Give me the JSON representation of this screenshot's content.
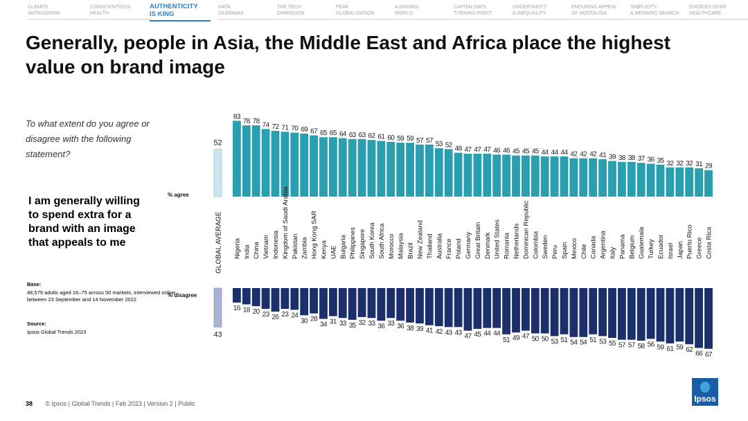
{
  "nav": [
    {
      "label": "CLIMATE\nANTAGONISM",
      "active": false
    },
    {
      "label": "CONSCIENTIOUS\nHEALTH",
      "active": false
    },
    {
      "label": "AUTHENTICITY\nIS KING",
      "active": true
    },
    {
      "label": "DATA\nDILEMMAS",
      "active": false
    },
    {
      "label": "THE TECH\nDIMENSION",
      "active": false
    },
    {
      "label": "PEAK\nGLOBALISATION",
      "active": false
    },
    {
      "label": "A DIVIDED\nWORLD",
      "active": false
    },
    {
      "label": "CAPITALISM'S\nTURNING POINT",
      "active": false
    },
    {
      "label": "UNCERTAINTY\n& INEQUALITY",
      "active": false
    },
    {
      "label": "ENDURING APPEAL\nOF NOSTALGIA",
      "active": false
    },
    {
      "label": "SIMPLICITY\n& MEANING SEARCH",
      "active": false
    },
    {
      "label": "CHOICES OVER\nHEALTHCARE",
      "active": false
    }
  ],
  "title": "Generally, people in Asia, the Middle East and Africa place the highest value on brand image",
  "question": "To what extent do you agree or disagree with the following statement?",
  "statement": "I am generally willing to spend extra for a brand with an image that appeals to me",
  "base": {
    "heading": "Base:",
    "text": "48,579 adults aged 16–75 across 50 markets, interviewed online between 23 September and 14 November 2022"
  },
  "source": {
    "heading": "Source:",
    "text": "Ipsos Global Trends 2023"
  },
  "footer": {
    "page": "38",
    "text": "© Ipsos | Global Trends | Feb 2023 | Version 2 | Public"
  },
  "logo": {
    "text": "Ipsos"
  },
  "chart_data": {
    "type": "bar",
    "global_average": {
      "label": "GLOBAL AVERAGE",
      "agree": 52,
      "disagree": 43
    },
    "series_labels": {
      "agree": "% agree",
      "disagree": "% disagree"
    },
    "colors": {
      "agree": "#2a9fb0",
      "disagree": "#1b2f6b",
      "avg_agree": "#c9e7ed",
      "avg_disagree": "#a9b3d6"
    },
    "categories": [
      "Nigeria",
      "India",
      "China",
      "Vietnam",
      "Indonesia",
      "Kingdom of Saudi Arabia",
      "Pakistan",
      "Zambia",
      "Hong Kong SAR",
      "Kenya",
      "UAE",
      "Bulgaria",
      "Philippines",
      "Singapore",
      "South Korea",
      "South Africa",
      "Morocco",
      "Malaysia",
      "Brazil",
      "New Zealand",
      "Thailand",
      "Australia",
      "France",
      "Poland",
      "Germany",
      "Great Britain",
      "Denmark",
      "United States",
      "Romania",
      "Netherlands",
      "Dominican Republic",
      "Colombia",
      "Sweden",
      "Peru",
      "Spain",
      "Mexico",
      "Chile",
      "Canada",
      "Argentina",
      "Italy",
      "Panama",
      "Belgium",
      "Guatemala",
      "Turkey",
      "Ecuador",
      "Israel",
      "Japan",
      "Puerto Rico",
      "Greece",
      "Costa Rica"
    ],
    "series": [
      {
        "name": "% agree",
        "values": [
          83,
          78,
          78,
          74,
          72,
          71,
          70,
          69,
          67,
          65,
          65,
          64,
          63,
          63,
          62,
          61,
          60,
          59,
          59,
          57,
          57,
          53,
          52,
          48,
          47,
          47,
          47,
          46,
          46,
          45,
          45,
          45,
          44,
          44,
          44,
          42,
          42,
          42,
          41,
          39,
          38,
          38,
          37,
          36,
          35,
          32,
          32,
          32,
          31,
          29
        ]
      },
      {
        "name": "% disagree",
        "values": [
          16,
          18,
          20,
          23,
          26,
          23,
          24,
          30,
          28,
          34,
          31,
          33,
          35,
          32,
          33,
          36,
          33,
          36,
          38,
          39,
          41,
          42,
          43,
          43,
          47,
          45,
          44,
          44,
          51,
          49,
          47,
          50,
          50,
          53,
          51,
          54,
          54,
          51,
          53,
          55,
          57,
          57,
          58,
          56,
          59,
          61,
          59,
          62,
          66,
          67
        ]
      }
    ]
  }
}
